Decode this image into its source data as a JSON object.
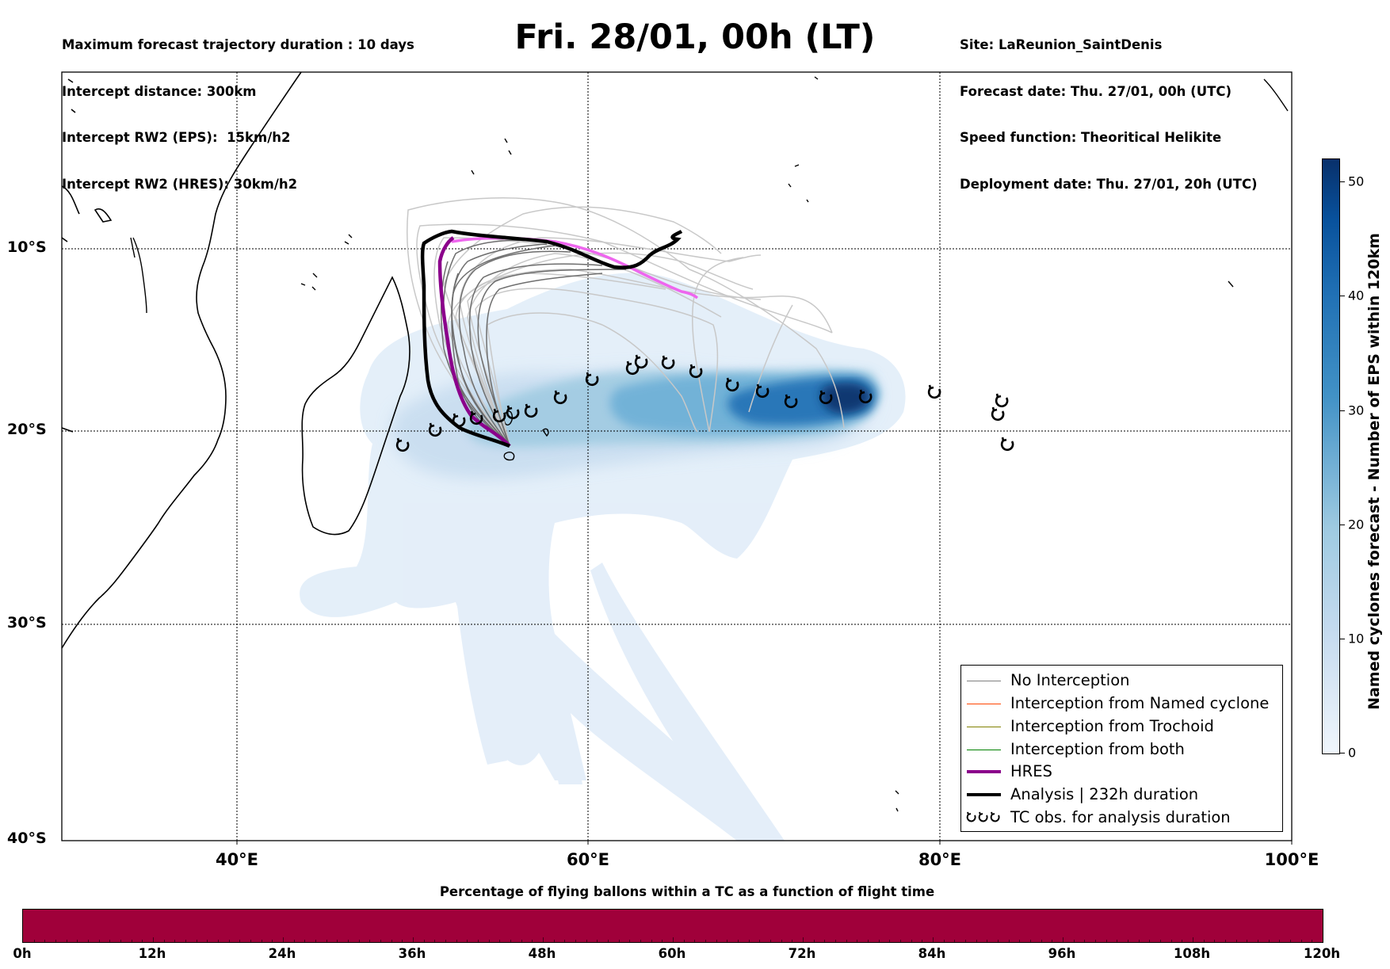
{
  "header": {
    "left_lines": [
      "Maximum forecast trajectory duration : 10 days",
      "Intercept distance: 300km",
      "Intercept RW2 (EPS):  15km/h2",
      "Intercept RW2 (HRES): 30km/h2"
    ],
    "title": "Fri. 28/01, 00h (LT)",
    "right_lines": [
      "Site: LaReunion_SaintDenis",
      "Forecast date: Thu. 27/01, 00h (UTC)",
      "Speed function: Theoritical Helikite",
      "Deployment date: Thu. 27/01, 20h (UTC)"
    ]
  },
  "map": {
    "lat_labels": [
      "10°S",
      "20°S",
      "30°S",
      "40°S"
    ],
    "lon_labels": [
      "40°E",
      "60°E",
      "80°E",
      "100°E"
    ],
    "lon_range": [
      30,
      100
    ],
    "lat_range": [
      -40,
      0
    ],
    "colors": {
      "hres": "#8b008b",
      "hres_light": "#ee66ee",
      "analysis": "#000000",
      "no_interception": "#808080",
      "interception_named_cyclone": "#ff4500",
      "interception_trochoid": "#808000",
      "interception_both": "#008000",
      "density_low": "#deebf7",
      "density_high": "#08306b"
    },
    "tc_obs_icon": "cyclone-symbol-icon"
  },
  "legend": {
    "items": [
      {
        "label": "No Interception",
        "icon": "line-gray"
      },
      {
        "label": "Interception from Named cyclone",
        "icon": "line-orange"
      },
      {
        "label": "Interception from Trochoid",
        "icon": "line-olive"
      },
      {
        "label": "Interception from both",
        "icon": "line-green"
      },
      {
        "label": "HRES",
        "icon": "line-purple"
      },
      {
        "label": "Analysis | 232h duration",
        "icon": "line-black"
      },
      {
        "label": "TC obs. for analysis duration",
        "icon": "cyclone-symbols-icon"
      }
    ]
  },
  "colorbar": {
    "title": "Named cyclones forecast - Number of EPS within 120km",
    "ticks": [
      "0",
      "10",
      "20",
      "30",
      "40",
      "50"
    ],
    "range": [
      0,
      52
    ]
  },
  "bottom": {
    "title": "Percentage of flying ballons within a TC as a function of flight time",
    "ticks": [
      "0h",
      "12h",
      "24h",
      "36h",
      "48h",
      "60h",
      "72h",
      "84h",
      "96h",
      "108h",
      "120h"
    ],
    "bar_color": "#a0003a"
  }
}
